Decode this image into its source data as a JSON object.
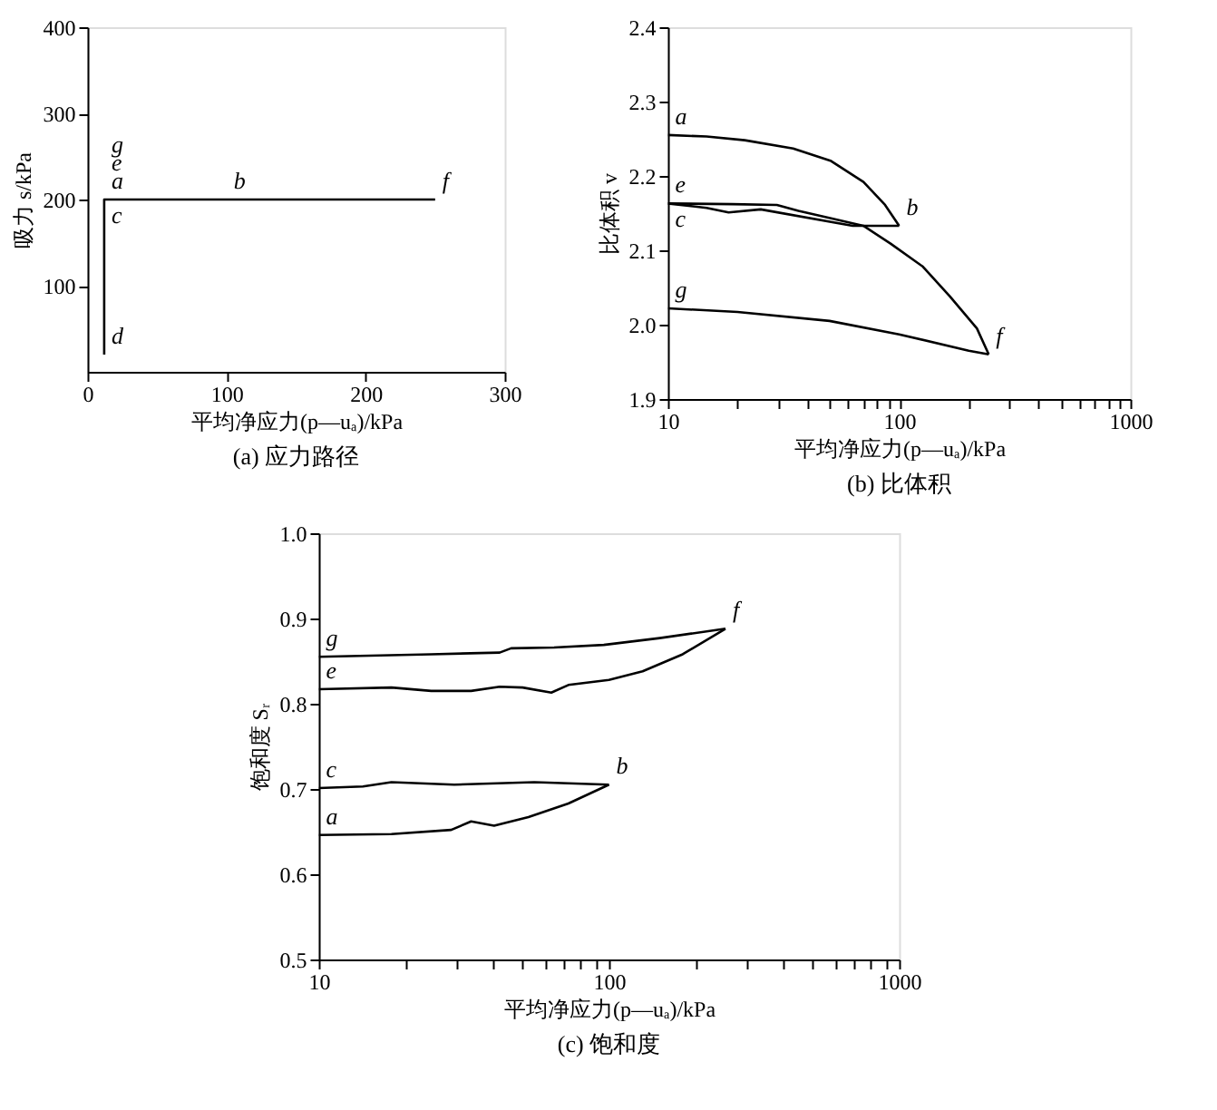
{
  "chart_data": [
    {
      "type": "line",
      "title": "(a) 应力路径",
      "xlabel": "平均净应力(p—uₐ)/kPa",
      "ylabel": "吸力 s/kPa",
      "xlim": [
        0,
        300
      ],
      "ylim": [
        0,
        400
      ],
      "xticks": [
        0,
        100,
        200,
        300
      ],
      "yticks": [
        100,
        200,
        300,
        400
      ],
      "grid": false,
      "marker": "none",
      "line_style": "solid",
      "series": [
        {
          "color": "#000000",
          "x": [
            12,
            12,
            250
          ],
          "values": [
            20,
            200,
            200
          ]
        }
      ],
      "annotations": [
        {
          "text": "c",
          "x": 12,
          "y": 200
        },
        {
          "text": "a",
          "x": 12,
          "y": 200
        },
        {
          "text": "e",
          "x": 12,
          "y": 200
        },
        {
          "text": "g",
          "x": 12,
          "y": 200
        },
        {
          "text": "b",
          "x": 100,
          "y": 200
        },
        {
          "text": "f",
          "x": 250,
          "y": 200
        },
        {
          "text": "d",
          "x": 12,
          "y": 20
        }
      ]
    },
    {
      "type": "line",
      "title": "(b) 比体积",
      "xlabel": "平均净应力(p—uₐ)/kPa",
      "ylabel": "比体积 v",
      "xlim": [
        10,
        1000
      ],
      "ylim": [
        1.9,
        2.4
      ],
      "log": "x",
      "xticks": [
        10,
        {
          "value": 20,
          "label": null
        },
        {
          "value": 30,
          "label": null
        },
        {
          "value": 40,
          "label": null
        },
        {
          "value": 50,
          "label": null
        },
        {
          "value": 60,
          "label": null
        },
        {
          "value": 70,
          "label": null
        },
        {
          "value": 80,
          "label": null
        },
        {
          "value": 90,
          "label": null
        },
        100,
        {
          "value": 200,
          "label": null
        },
        {
          "value": 300,
          "label": null
        },
        {
          "value": 400,
          "label": null
        },
        {
          "value": 500,
          "label": null
        },
        {
          "value": 600,
          "label": null
        },
        {
          "value": 700,
          "label": null
        },
        {
          "value": 800,
          "label": null
        },
        {
          "value": 900,
          "label": null
        },
        1000
      ],
      "yticks": [
        1.9,
        {
          "value": 2,
          "label": "2.0"
        },
        2.1,
        2.2,
        2.3,
        2.4
      ],
      "grid": false,
      "marker": "none",
      "line_style": "solid",
      "series": [
        {
          "color": "#000000",
          "x": [
            10,
            14.7,
            21.5,
            34.8,
            50.8,
            70.1,
            86.9,
            100
          ],
          "values": [
            2.255,
            2.253,
            2.248,
            2.237,
            2.22,
            2.192,
            2.161,
            2.133
          ]
        },
        {
          "color": "#000000",
          "x": [
            100,
            63,
            25.2,
            18.3,
            14.7,
            10
          ],
          "values": [
            2.133,
            2.133,
            2.155,
            2.151,
            2.157,
            2.163
          ]
        },
        {
          "color": "#000000",
          "x": [
            10,
            19,
            29.6,
            36.7,
            50.8,
            70,
            91.8,
            126.7,
            165.8,
            216.9,
            244
          ],
          "values": [
            2.163,
            2.162,
            2.161,
            2.153,
            2.143,
            2.133,
            2.109,
            2.078,
            2.038,
            1.995,
            1.96
          ]
        },
        {
          "color": "#000000",
          "x": [
            244,
            200,
            100,
            50,
            20,
            10
          ],
          "values": [
            1.96,
            1.965,
            1.987,
            2.005,
            2.017,
            2.022
          ]
        }
      ],
      "annotations": [
        {
          "text": "a",
          "x": 10,
          "y": 2.255
        },
        {
          "text": "c",
          "x": 10,
          "y": 2.163
        },
        {
          "text": "e",
          "x": 10,
          "y": 2.163
        },
        {
          "text": "b",
          "x": 100,
          "y": 2.133
        },
        {
          "text": "g",
          "x": 10,
          "y": 2.022
        },
        {
          "text": "f",
          "x": 244,
          "y": 1.96
        }
      ]
    },
    {
      "type": "line",
      "title": "(c) 饱和度",
      "xlabel": "平均净应力(p—uₐ)/kPa",
      "ylabel": "饱和度 Sᵣ",
      "xlim": [
        10,
        1000
      ],
      "ylim": [
        0.5,
        1.0
      ],
      "log": "x",
      "xticks": [
        10,
        {
          "value": 20,
          "label": null
        },
        {
          "value": 30,
          "label": null
        },
        {
          "value": 40,
          "label": null
        },
        {
          "value": 50,
          "label": null
        },
        {
          "value": 60,
          "label": null
        },
        {
          "value": 70,
          "label": null
        },
        {
          "value": 80,
          "label": null
        },
        {
          "value": 90,
          "label": null
        },
        100,
        {
          "value": 200,
          "label": null
        },
        {
          "value": 300,
          "label": null
        },
        {
          "value": 400,
          "label": null
        },
        {
          "value": 500,
          "label": null
        },
        {
          "value": 600,
          "label": null
        },
        {
          "value": 700,
          "label": null
        },
        {
          "value": 800,
          "label": null
        },
        {
          "value": 900,
          "label": null
        },
        1000
      ],
      "yticks": [
        0.5,
        0.6,
        0.7,
        0.8,
        0.9,
        {
          "value": 1,
          "label": "1.0"
        }
      ],
      "grid": false,
      "marker": "none",
      "line_style": "solid",
      "series": [
        {
          "color": "#000000",
          "x": [
            10,
            17.8,
            28.6,
            33.5,
            40.2,
            52.8,
            72.5,
            100
          ],
          "values": [
            0.646,
            0.647,
            0.652,
            0.662,
            0.657,
            0.667,
            0.683,
            0.705
          ]
        },
        {
          "color": "#000000",
          "x": [
            100,
            55.3,
            29.3,
            17.8,
            14.2,
            10
          ],
          "values": [
            0.705,
            0.708,
            0.705,
            0.708,
            0.703,
            0.701
          ]
        },
        {
          "color": "#000000",
          "x": [
            10,
            17.8,
            24.4,
            33.5,
            42,
            50.4,
            63.3,
            72.5,
            100,
            130.6,
            179.5,
            252
          ],
          "values": [
            0.817,
            0.819,
            0.815,
            0.815,
            0.82,
            0.819,
            0.813,
            0.822,
            0.828,
            0.838,
            0.858,
            0.888
          ]
        },
        {
          "color": "#000000",
          "x": [
            252,
            149.6,
            96,
            64.7,
            46,
            42,
            24.4,
            10
          ],
          "values": [
            0.888,
            0.877,
            0.869,
            0.866,
            0.865,
            0.86,
            0.858,
            0.855
          ]
        }
      ],
      "annotations": [
        {
          "text": "g",
          "x": 10,
          "y": 0.855
        },
        {
          "text": "e",
          "x": 10,
          "y": 0.817
        },
        {
          "text": "c",
          "x": 10,
          "y": 0.701
        },
        {
          "text": "b",
          "x": 100,
          "y": 0.705
        },
        {
          "text": "a",
          "x": 10,
          "y": 0.646
        },
        {
          "text": "f",
          "x": 252,
          "y": 0.888
        }
      ]
    }
  ]
}
